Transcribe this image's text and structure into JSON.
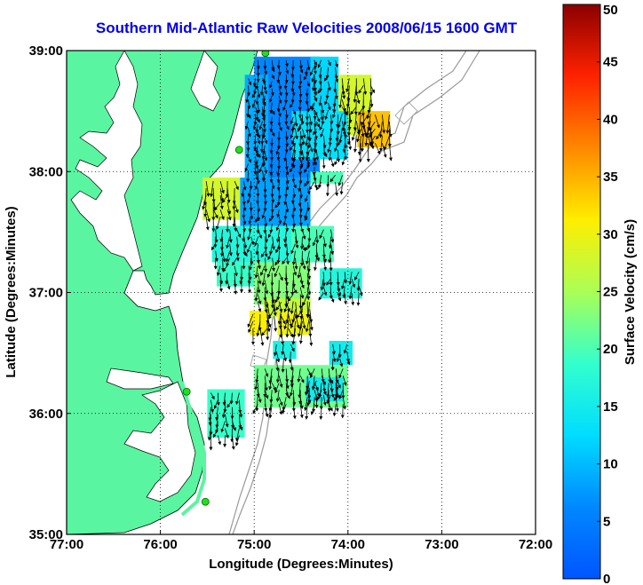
{
  "title": "Southern Mid-Atlantic Raw Velocities 2008/06/15 1600 GMT",
  "xlabel": "Longitude (Degrees:Minutes)",
  "ylabel": "Latitude (Degrees:Minutes)",
  "colorbar": {
    "label": "Surface Velocity (cm/s)",
    "min": 0,
    "max": 50,
    "ticks": [
      "0",
      "5",
      "10",
      "15",
      "20",
      "25",
      "30",
      "35",
      "40",
      "45",
      "50"
    ]
  },
  "x_ticks": [
    {
      "lon": -77,
      "label": "77:00"
    },
    {
      "lon": -76,
      "label": "76:00"
    },
    {
      "lon": -75,
      "label": "75:00"
    },
    {
      "lon": -74,
      "label": "74:00"
    },
    {
      "lon": -73,
      "label": "73:00"
    },
    {
      "lon": -72,
      "label": "72:00"
    }
  ],
  "y_ticks": [
    {
      "lat": 39,
      "label": "39:00"
    },
    {
      "lat": 38,
      "label": "38:00"
    },
    {
      "lat": 37,
      "label": "37:00"
    },
    {
      "lat": 36,
      "label": "36:00"
    },
    {
      "lat": 35,
      "label": "35:00"
    }
  ],
  "extent": {
    "lon": [
      -77,
      -72
    ],
    "lat": [
      35,
      39
    ]
  },
  "grid": true,
  "colors": {
    "land": "#5af5a0",
    "title": "#0000ee",
    "station": "#22dd22"
  },
  "stations": [
    {
      "lon": -74.88,
      "lat": 38.98
    },
    {
      "lon": -75.16,
      "lat": 38.18
    },
    {
      "lon": -75.72,
      "lat": 36.18
    },
    {
      "lon": -75.52,
      "lat": 35.27
    }
  ],
  "velocity_regions": [
    {
      "lon0": -75.0,
      "lon1": -74.3,
      "lat0": 37.95,
      "lat1": 38.95,
      "speed": 6
    },
    {
      "lon0": -75.1,
      "lon1": -74.85,
      "lat0": 37.95,
      "lat1": 38.8,
      "speed": 9
    },
    {
      "lon0": -74.4,
      "lon1": -74.1,
      "lat0": 38.5,
      "lat1": 38.95,
      "speed": 12
    },
    {
      "lon0": -74.1,
      "lon1": -73.75,
      "lat0": 38.3,
      "lat1": 38.8,
      "speed": 28
    },
    {
      "lon0": -73.9,
      "lon1": -73.55,
      "lat0": 38.2,
      "lat1": 38.5,
      "speed": 34
    },
    {
      "lon0": -74.6,
      "lon1": -74.0,
      "lat0": 38.1,
      "lat1": 38.5,
      "speed": 13
    },
    {
      "lon0": -74.4,
      "lon1": -74.05,
      "lat0": 37.9,
      "lat1": 38.0,
      "speed": 20
    },
    {
      "lon0": -75.55,
      "lon1": -75.15,
      "lat0": 37.6,
      "lat1": 37.95,
      "speed": 28
    },
    {
      "lon0": -75.15,
      "lon1": -74.4,
      "lat0": 37.55,
      "lat1": 37.95,
      "speed": 8
    },
    {
      "lon0": -75.45,
      "lon1": -74.6,
      "lat0": 37.25,
      "lat1": 37.55,
      "speed": 17
    },
    {
      "lon0": -74.6,
      "lon1": -74.15,
      "lat0": 37.25,
      "lat1": 37.55,
      "speed": 20
    },
    {
      "lon0": -75.4,
      "lon1": -75.0,
      "lat0": 37.05,
      "lat1": 37.25,
      "speed": 19
    },
    {
      "lon0": -75.0,
      "lon1": -74.4,
      "lat0": 36.9,
      "lat1": 37.25,
      "speed": 23
    },
    {
      "lon0": -74.3,
      "lon1": -73.85,
      "lat0": 36.95,
      "lat1": 37.2,
      "speed": 17
    },
    {
      "lon0": -74.9,
      "lon1": -74.4,
      "lat0": 36.8,
      "lat1": 36.95,
      "speed": 27
    },
    {
      "lon0": -74.75,
      "lon1": -74.4,
      "lat0": 36.65,
      "lat1": 36.85,
      "speed": 30
    },
    {
      "lon0": -75.05,
      "lon1": -74.85,
      "lat0": 36.65,
      "lat1": 36.85,
      "speed": 31
    },
    {
      "lon0": -74.8,
      "lon1": -74.55,
      "lat0": 36.45,
      "lat1": 36.6,
      "speed": 16
    },
    {
      "lon0": -74.2,
      "lon1": -73.95,
      "lat0": 36.4,
      "lat1": 36.6,
      "speed": 15
    },
    {
      "lon0": -75.0,
      "lon1": -74.0,
      "lat0": 36.05,
      "lat1": 36.4,
      "speed": 22
    },
    {
      "lon0": -74.45,
      "lon1": -74.05,
      "lat0": 36.1,
      "lat1": 36.3,
      "speed": 15
    },
    {
      "lon0": -75.5,
      "lon1": -75.1,
      "lat0": 35.8,
      "lat1": 36.2,
      "speed": 19
    }
  ]
}
